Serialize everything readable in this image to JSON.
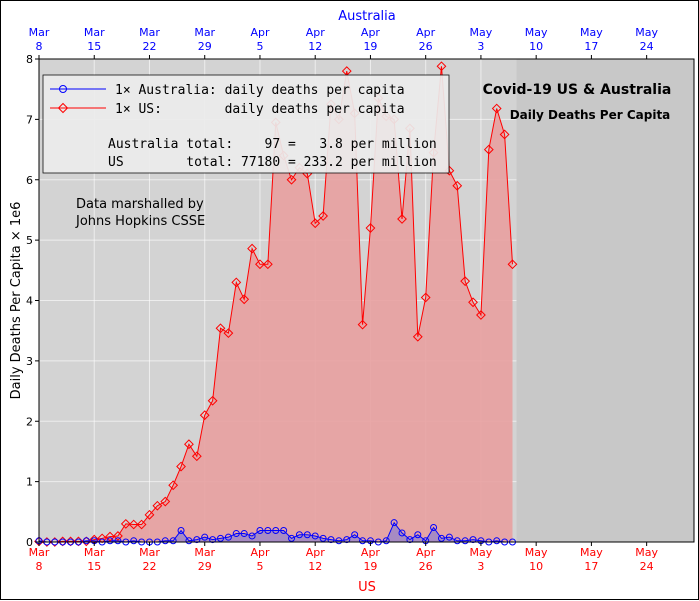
{
  "chart_data": {
    "type": "line",
    "title": "Covid-19 US & Australia",
    "subtitle": "Daily Deaths Per Capita",
    "ylabel": "Daily Deaths Per Capita × 1e6",
    "xlabel_bottom": "US",
    "xlabel_top": "Australia",
    "ylim": [
      0,
      8
    ],
    "xlim": [
      "2020-03-08",
      "2020-05-30"
    ],
    "yticks": [
      "0",
      "1",
      "2",
      "3",
      "4",
      "5",
      "6",
      "7",
      "8"
    ],
    "xticks": [
      {
        "month": "Mar",
        "day": "8"
      },
      {
        "month": "Mar",
        "day": "15"
      },
      {
        "month": "Mar",
        "day": "22"
      },
      {
        "month": "Mar",
        "day": "29"
      },
      {
        "month": "Apr",
        "day": "5"
      },
      {
        "month": "Apr",
        "day": "12"
      },
      {
        "month": "Apr",
        "day": "19"
      },
      {
        "month": "Apr",
        "day": "26"
      },
      {
        "month": "May",
        "day": "3"
      },
      {
        "month": "May",
        "day": "10"
      },
      {
        "month": "May",
        "day": "17"
      },
      {
        "month": "May",
        "day": "24"
      }
    ],
    "grid": true,
    "legend_location": "top-left",
    "colors": {
      "us": "#ff0000",
      "australia": "#0000ff",
      "axes_bg": "#d3d3d3",
      "us_fill": "#e8a0a0",
      "au_fill": "#9b86c8"
    },
    "series": [
      {
        "name": "1× US:        daily deaths per capita",
        "start_date": "2020-03-08",
        "marker": "diamond",
        "values": [
          0.01,
          0.0,
          0.0,
          0.01,
          0.01,
          0.01,
          0.01,
          0.04,
          0.06,
          0.09,
          0.1,
          0.3,
          0.29,
          0.29,
          0.45,
          0.6,
          0.67,
          0.94,
          1.25,
          1.62,
          1.42,
          2.1,
          2.34,
          3.54,
          3.46,
          4.3,
          4.02,
          4.86,
          4.6,
          4.6,
          6.95,
          6.4,
          6.0,
          6.2,
          6.1,
          5.28,
          5.4,
          7.25,
          7.0,
          7.8,
          7.1,
          3.6,
          5.2,
          7.35,
          7.05,
          7.0,
          5.35,
          6.85,
          3.4,
          4.05,
          6.45,
          7.88,
          6.15,
          5.9,
          4.32,
          3.97,
          3.76,
          6.5,
          7.18,
          6.75,
          4.6
        ]
      },
      {
        "name": "1× Australia: daily deaths per capita",
        "start_date": "2020-03-08",
        "marker": "circle",
        "values": [
          0.02,
          0.0,
          0.0,
          0.0,
          0.0,
          0.0,
          0.02,
          0.02,
          0.0,
          0.02,
          0.02,
          0.0,
          0.02,
          0.0,
          0.0,
          0.0,
          0.02,
          0.02,
          0.19,
          0.02,
          0.04,
          0.08,
          0.04,
          0.06,
          0.08,
          0.14,
          0.14,
          0.1,
          0.19,
          0.19,
          0.19,
          0.19,
          0.06,
          0.12,
          0.12,
          0.1,
          0.06,
          0.04,
          0.02,
          0.04,
          0.12,
          0.02,
          0.02,
          0.0,
          0.02,
          0.32,
          0.15,
          0.04,
          0.12,
          0.02,
          0.24,
          0.06,
          0.08,
          0.02,
          0.02,
          0.04,
          0.02,
          0.0,
          0.02,
          0.0,
          0.0
        ]
      }
    ],
    "annotations": {
      "credit_line1": "Data marshalled by",
      "credit_line2": "Johns Hopkins CSSE",
      "legend_au": "1× Australia: daily deaths per capita",
      "legend_us": "1× US:        daily deaths per capita",
      "total_au": "Australia total:    97 =   3.8 per million",
      "total_us": "US        total: 77180 = 233.2 per million"
    }
  }
}
